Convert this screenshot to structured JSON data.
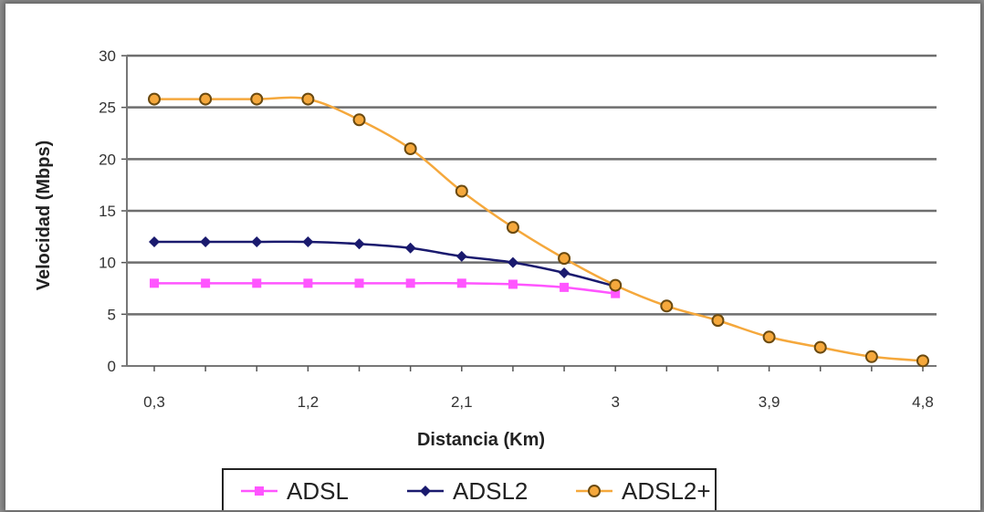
{
  "chart_data": {
    "type": "line",
    "title": "",
    "xlabel": "Distancia (Km)",
    "ylabel": "Velocidad (Mbps)",
    "ylim": [
      0,
      30
    ],
    "y_ticks": [
      "0",
      "5",
      "10",
      "15",
      "20",
      "25",
      "30"
    ],
    "x": [
      0.3,
      0.6,
      0.9,
      1.2,
      1.5,
      1.8,
      2.1,
      2.4,
      2.7,
      3.0,
      3.3,
      3.6,
      3.9,
      4.2,
      4.5,
      4.8
    ],
    "x_tick_labels": [
      "0,3",
      "1,2",
      "2,1",
      "3",
      "3,9",
      "4,8"
    ],
    "grid": "horizontal",
    "legend_position": "bottom",
    "series": [
      {
        "name": "ADSL",
        "color": "#ff55ff",
        "marker": "square",
        "values": [
          8,
          8,
          8,
          8,
          8,
          8,
          8,
          7.9,
          7.6,
          7,
          null,
          null,
          null,
          null,
          null,
          null
        ]
      },
      {
        "name": "ADSL2",
        "color": "#1a1a6e",
        "marker": "diamond",
        "values": [
          12,
          12,
          12,
          12,
          11.8,
          11.4,
          10.6,
          10,
          9,
          7.7,
          null,
          null,
          null,
          null,
          null,
          null
        ]
      },
      {
        "name": "ADSL2+",
        "color": "#f5a83c",
        "marker": "circle",
        "values": [
          25.8,
          25.8,
          25.8,
          25.8,
          23.8,
          21,
          16.9,
          13.4,
          10.4,
          7.8,
          5.8,
          4.4,
          2.8,
          1.8,
          0.9,
          0.5
        ]
      }
    ]
  }
}
